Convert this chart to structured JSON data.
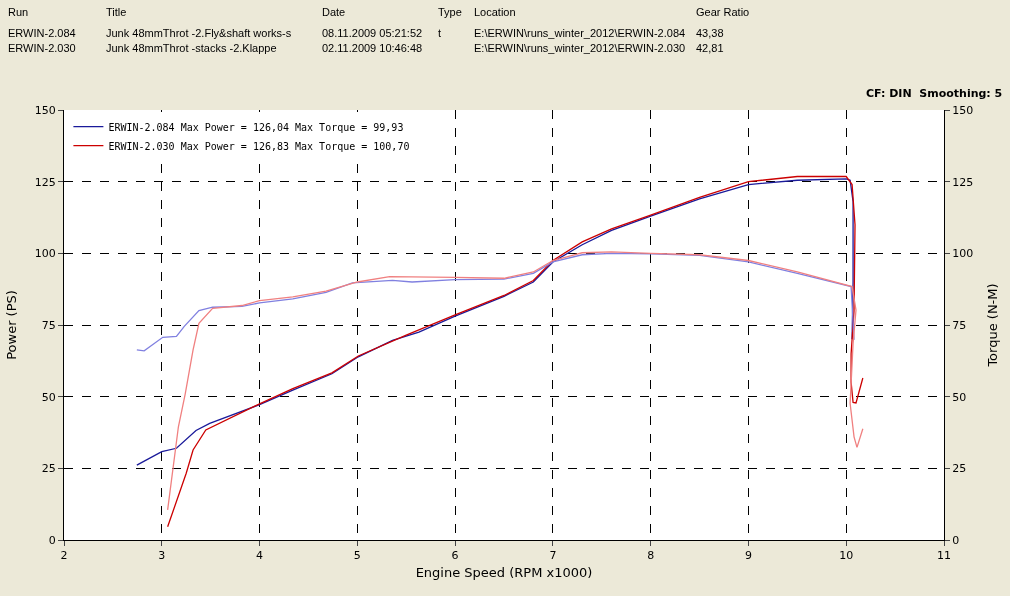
{
  "chart_data": {
    "type": "line",
    "xlabel": "Engine Speed (RPM x1000)",
    "ylabel": "Power (PS)",
    "y2label": "Torque (N-M)",
    "xlim": [
      2,
      11
    ],
    "xticks": [
      2,
      3,
      4,
      5,
      6,
      7,
      8,
      9,
      10,
      11
    ],
    "ylim": [
      0,
      150
    ],
    "yticks": [
      0,
      25,
      50,
      75,
      100,
      125,
      150
    ],
    "y2lim": [
      0,
      150
    ],
    "y2ticks": [
      0,
      25,
      50,
      75,
      100,
      125,
      150
    ],
    "grid": true,
    "legend": "top left",
    "marker": "none",
    "line_style": "solid",
    "series": [
      {
        "name": "ERWIN-2.084 Max Power = 126,04 Max Torque = 99,93",
        "color": "#1a1a9a",
        "x": [
          2.745,
          3.0,
          3.15,
          3.35,
          3.49,
          4.0,
          4.34,
          4.74,
          5.01,
          5.36,
          5.63,
          6.0,
          6.5,
          6.8,
          7.0,
          7.3,
          7.6,
          8.0,
          8.5,
          9.0,
          9.5,
          10.0,
          10.04,
          10.07,
          10.07,
          10.06
        ],
        "values": [
          26.1,
          30.8,
          32,
          38.2,
          40.7,
          47.2,
          52.3,
          58,
          63.9,
          69.6,
          72.5,
          78.1,
          85,
          90,
          97,
          103,
          108,
          113,
          119,
          124,
          125.5,
          126,
          125.5,
          118,
          90,
          70
        ]
      },
      {
        "name": "ERWIN-2.030 Max Power = 126,83 Max Torque = 100,70",
        "color": "#cc0000",
        "x": [
          3.06,
          3.25,
          3.32,
          3.45,
          4.0,
          4.34,
          4.74,
          5.01,
          5.5,
          6.0,
          6.5,
          6.8,
          7.0,
          7.3,
          7.6,
          8.0,
          8.5,
          9.0,
          9.5,
          10.0,
          10.06,
          10.09,
          10.08,
          10.05,
          10.05,
          10.07,
          10.1,
          10.17
        ],
        "values": [
          4.6,
          23.3,
          31.4,
          38.4,
          47.5,
          52.8,
          58.3,
          64.2,
          71.5,
          78.5,
          85.3,
          90.5,
          97.5,
          104,
          108.5,
          113.3,
          119.5,
          125,
          126.8,
          126.8,
          124,
          110,
          80,
          65,
          55,
          48,
          47.8,
          56.5
        ]
      },
      {
        "color": "#8080e0",
        "axis": "y2",
        "x": [
          2.745,
          2.82,
          3.01,
          3.15,
          3.23,
          3.38,
          3.52,
          3.82,
          4.0,
          4.34,
          4.68,
          4.95,
          5.36,
          5.56,
          6.0,
          6.5,
          6.8,
          7.0,
          7.3,
          7.6,
          8.0,
          8.5,
          9.0,
          9.5,
          10.05,
          10.08
        ],
        "values": [
          66.3,
          66,
          70.7,
          71,
          74.5,
          80,
          81.2,
          81.5,
          82.7,
          84.1,
          86.4,
          89.7,
          90.6,
          90,
          90.8,
          91,
          93,
          97,
          99.5,
          100,
          99.8,
          99.3,
          97,
          93,
          88.4,
          69.8
        ]
      },
      {
        "color": "#f08080",
        "axis": "y2",
        "x": [
          3.06,
          3.17,
          3.24,
          3.32,
          3.38,
          3.52,
          3.82,
          4.0,
          4.34,
          4.68,
          5.0,
          5.33,
          6.0,
          6.5,
          6.8,
          7.0,
          7.3,
          7.6,
          8.0,
          8.5,
          9.0,
          9.5,
          10.06,
          10.1,
          10.07,
          10.04,
          10.08,
          10.11,
          10.17
        ],
        "values": [
          10.5,
          39.5,
          51,
          66.3,
          75.6,
          80.8,
          81.8,
          83.5,
          84.8,
          86.8,
          90,
          91.9,
          91.6,
          91.3,
          93.5,
          97.5,
          100.2,
          100.5,
          100,
          99.5,
          97.5,
          93.5,
          88.4,
          80.2,
          68.5,
          47.6,
          36,
          32.3,
          38.8
        ]
      }
    ],
    "annotations": [
      "Run",
      "Title",
      "Date",
      "Type",
      "Location",
      "Gear Ratio",
      "ERWIN-2.084",
      "Junk 48mmThrot -2.Fly&shaft works-s",
      "08.11.2009 05:21:52",
      "t",
      "E:\\ERWIN\\runs_winter_2012\\ERWIN-2.084",
      "43,38",
      "ERWIN-2.030",
      "Junk 48mmThrot -stacks -2.Klappe",
      "02.11.2009 10:46:48",
      "E:\\ERWIN\\runs_winter_2012\\ERWIN-2.030",
      "42,81",
      "CF: DIN  Smoothing: 5"
    ]
  }
}
